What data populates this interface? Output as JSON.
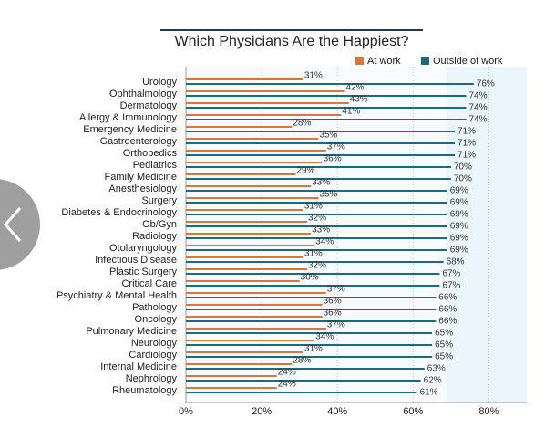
{
  "chart_data": {
    "type": "bar",
    "orientation": "horizontal",
    "title": "Which Physicians Are the Happiest?",
    "categories": [
      "Urology",
      "Ophthalmology",
      "Dermatology",
      "Allergy & Immunology",
      "Emergency Medicine",
      "Gastroenterology",
      "Orthopedics",
      "Pediatrics",
      "Family Medicine",
      "Anesthesiology",
      "Surgery",
      "Diabetes & Endocrinology",
      "Ob/Gyn",
      "Radiology",
      "Otolaryngology",
      "Infectious Disease",
      "Plastic Surgery",
      "Critical Care",
      "Psychiatry & Mental Health",
      "Pathology",
      "Oncology",
      "Pulmonary Medicine",
      "Neurology",
      "Cardiology",
      "Internal Medicine",
      "Nephrology",
      "Rheumatology"
    ],
    "series": [
      {
        "name": "At work",
        "color": "#d9773a",
        "values": [
          31,
          42,
          43,
          41,
          28,
          35,
          37,
          36,
          29,
          33,
          35,
          31,
          32,
          33,
          34,
          31,
          32,
          30,
          37,
          36,
          36,
          37,
          34,
          31,
          28,
          24,
          24
        ],
        "value_labels": [
          "31%",
          "42%",
          "43%",
          "41%",
          "28%",
          "35%",
          "37%",
          "36%",
          "29%",
          "33%",
          "35%",
          "31%",
          "32%",
          "33%",
          "34%",
          "31%",
          "32%",
          "30%",
          "37%",
          "36%",
          "36%",
          "37%",
          "34%",
          "31%",
          "28%",
          "24%",
          "24%"
        ]
      },
      {
        "name": "Outside of work",
        "color": "#1a6a82",
        "values": [
          76,
          74,
          74,
          74,
          71,
          71,
          71,
          70,
          70,
          69,
          69,
          69,
          69,
          69,
          69,
          68,
          67,
          67,
          66,
          66,
          66,
          65,
          65,
          65,
          63,
          62,
          61
        ],
        "value_labels": [
          "76%",
          "74%",
          "74%",
          "74%",
          "71%",
          "71%",
          "71%",
          "70%",
          "70%",
          "69%",
          "69%",
          "69%",
          "69%",
          "69%",
          "69%",
          "68%",
          "67%",
          "67%",
          "66%",
          "66%",
          "66%",
          "65%",
          "65%",
          "65%",
          "63%",
          "62%",
          "61%"
        ]
      }
    ],
    "xlim": [
      0,
      90
    ],
    "xticks": [
      {
        "value": 0,
        "label": "0%"
      },
      {
        "value": 20,
        "label": "20%"
      },
      {
        "value": 40,
        "label": "40%"
      },
      {
        "value": 60,
        "label": "60%"
      },
      {
        "value": 80,
        "label": "80%"
      }
    ],
    "grid": true,
    "legend": "top-right"
  }
}
